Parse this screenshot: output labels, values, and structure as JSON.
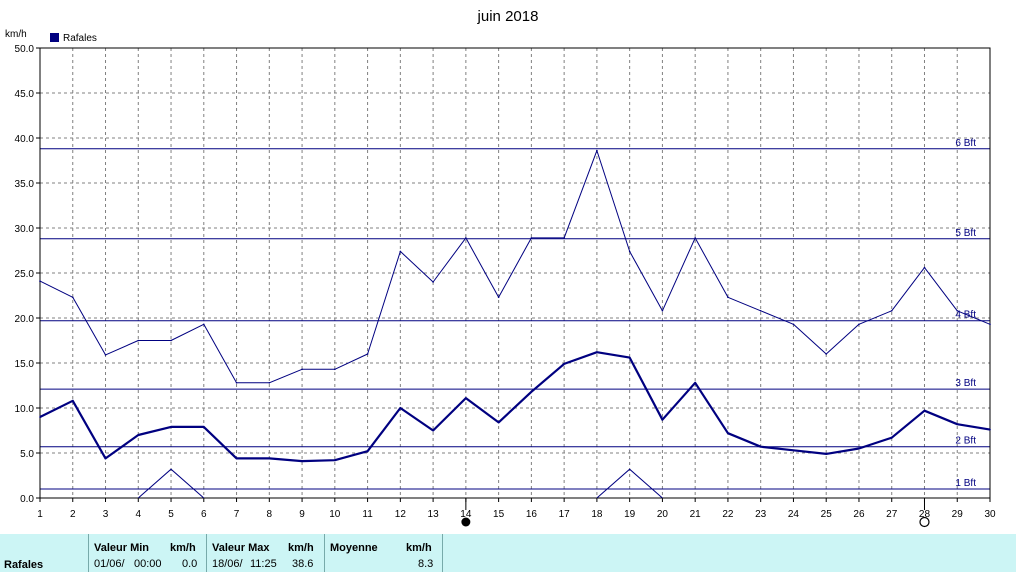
{
  "chart_data": {
    "type": "line",
    "title": "juin 2018",
    "ylabel": "km/h",
    "legend": {
      "label": "Rafales",
      "position": "top-left"
    },
    "ylim": [
      0,
      50
    ],
    "yticks": [
      "0.0",
      "5.0",
      "10.0",
      "15.0",
      "20.0",
      "25.0",
      "30.0",
      "35.0",
      "40.0",
      "45.0",
      "50.0"
    ],
    "x": [
      1,
      2,
      3,
      4,
      5,
      6,
      7,
      8,
      9,
      10,
      11,
      12,
      13,
      14,
      15,
      16,
      17,
      18,
      19,
      20,
      21,
      22,
      23,
      24,
      25,
      26,
      27,
      28,
      29,
      30
    ],
    "grid": true,
    "series": [
      {
        "name": "Rafales",
        "style": "thick",
        "color": "#000080",
        "values": [
          9.0,
          10.8,
          4.4,
          7.0,
          7.9,
          7.9,
          4.4,
          4.4,
          4.1,
          4.2,
          5.2,
          10.0,
          7.5,
          11.1,
          8.4,
          11.8,
          14.9,
          16.2,
          15.6,
          8.7,
          12.8,
          7.2,
          5.7,
          5.3,
          4.9,
          5.5,
          6.7,
          9.7,
          8.2,
          7.6
        ]
      },
      {
        "name": "",
        "style": "thin",
        "color": "#000080",
        "values": [
          24.1,
          22.3,
          15.9,
          17.5,
          17.5,
          19.3,
          12.8,
          12.8,
          14.3,
          14.3,
          16.0,
          27.4,
          24.0,
          28.9,
          22.3,
          28.9,
          28.9,
          38.6,
          27.4,
          20.8,
          28.9,
          22.3,
          20.8,
          19.3,
          16.0,
          19.3,
          20.8,
          25.6,
          20.8,
          19.3
        ]
      },
      {
        "name": "",
        "style": "thin",
        "color": "#000080",
        "segments": [
          {
            "x": [
              4,
              5,
              6
            ],
            "values": [
              0,
              3.2,
              0
            ]
          },
          {
            "x": [
              18,
              19,
              20
            ],
            "values": [
              0,
              3.2,
              0
            ]
          }
        ]
      }
    ],
    "reference_lines": [
      {
        "label": "1 Bft",
        "value": 1.0
      },
      {
        "label": "2 Bft",
        "value": 5.7
      },
      {
        "label": "3 Bft",
        "value": 12.1
      },
      {
        "label": "4 Bft",
        "value": 19.7
      },
      {
        "label": "5 Bft",
        "value": 28.8
      },
      {
        "label": "6 Bft",
        "value": 38.8
      }
    ],
    "moon_markers": [
      {
        "x": 14,
        "phase": "new-moon"
      },
      {
        "x": 28,
        "phase": "full-moon"
      }
    ]
  },
  "stats": {
    "row_label": "Rafales",
    "min_header": "Valeur Min",
    "min_unit": "km/h",
    "min_date": "01/06/",
    "min_time": "00:00",
    "min_value": "0.0",
    "max_header": "Valeur Max",
    "max_unit": "km/h",
    "max_date": "18/06/",
    "max_time": "11:25",
    "max_value": "38.6",
    "avg_header": "Moyenne",
    "avg_unit": "km/h",
    "avg_value": "8.3"
  }
}
